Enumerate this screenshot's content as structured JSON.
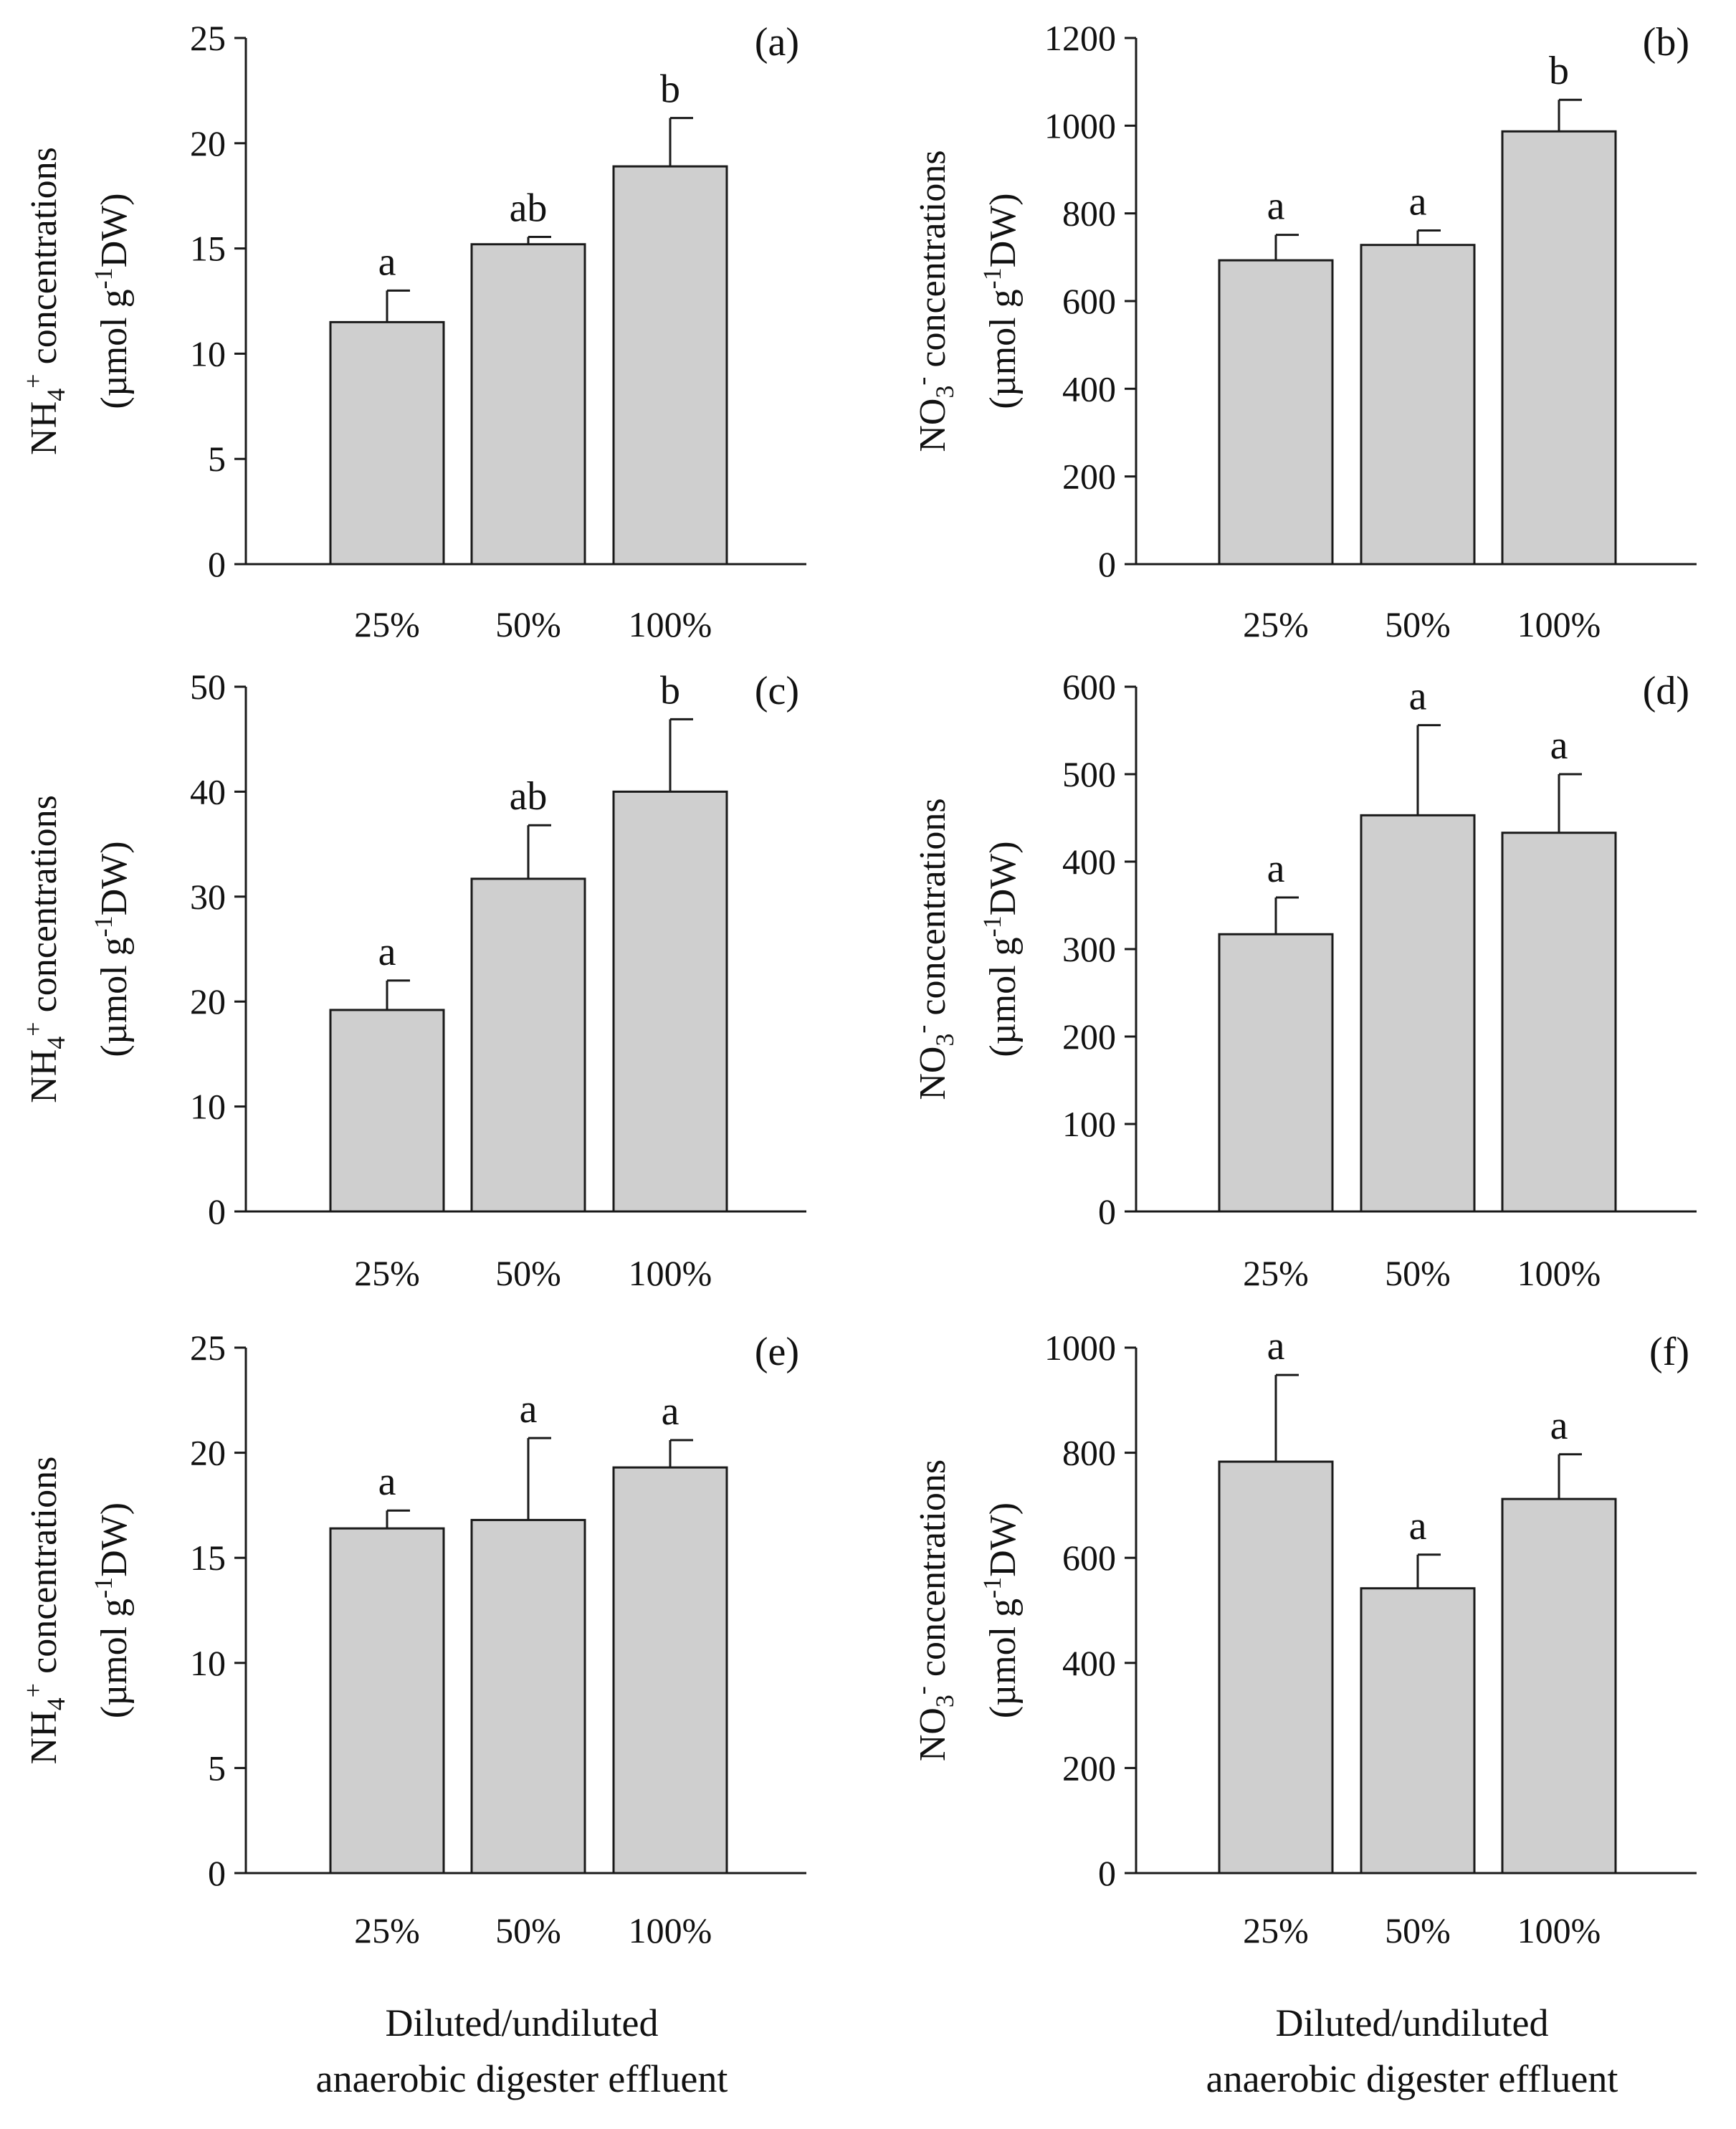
{
  "colors": {
    "bar_fill": "#cfcfcf",
    "bar_stroke": "#1a1a1a",
    "axis": "#1a1a1a"
  },
  "xlabels": {
    "left": {
      "line1": "Diluted/undiluted",
      "line2": "anaerobic digester effluent"
    },
    "right": {
      "line1": "Diluted/undiluted",
      "line2": "anaerobic digester effluent"
    }
  },
  "chart_data": [
    {
      "id": "a",
      "tag": "(a)",
      "type": "bar",
      "ylabel": {
        "ion": "NH",
        "sub": "4",
        "sup": "+",
        "rest": " concentrations",
        "unit_pre": "(µmol g",
        "unit_sup": "-1",
        "unit_post": "DW)"
      },
      "categories": [
        "25%",
        "50%",
        "100%"
      ],
      "values": [
        11.5,
        15.2,
        18.9
      ],
      "errors": [
        1.5,
        0.35,
        2.3
      ],
      "letters": [
        "a",
        "ab",
        "b"
      ],
      "ylim": [
        0,
        25
      ],
      "yticks": [
        0,
        5,
        10,
        15,
        20,
        25
      ]
    },
    {
      "id": "b",
      "tag": "(b)",
      "type": "bar",
      "ylabel": {
        "ion": "NO",
        "sub": "3",
        "sup": "-",
        "rest": " concentrations",
        "unit_pre": "(µmol g",
        "unit_sup": "-1",
        "unit_post": "DW)"
      },
      "categories": [
        "25%",
        "50%",
        "100%"
      ],
      "values": [
        693,
        728,
        987
      ],
      "errors": [
        58,
        33,
        72
      ],
      "letters": [
        "a",
        "a",
        "b"
      ],
      "ylim": [
        0,
        1200
      ],
      "yticks": [
        0,
        200,
        400,
        600,
        800,
        1000,
        1200
      ]
    },
    {
      "id": "c",
      "tag": "(c)",
      "type": "bar",
      "ylabel": {
        "ion": "NH",
        "sub": "4",
        "sup": "+",
        "rest": " concentrations",
        "unit_pre": "(µmol g",
        "unit_sup": "-1",
        "unit_post": "DW)"
      },
      "categories": [
        "25%",
        "50%",
        "100%"
      ],
      "values": [
        19.2,
        31.7,
        40.0
      ],
      "errors": [
        2.8,
        5.1,
        6.9
      ],
      "letters": [
        "a",
        "ab",
        "b"
      ],
      "ylim": [
        0,
        50
      ],
      "yticks": [
        0,
        10,
        20,
        30,
        40,
        50
      ]
    },
    {
      "id": "d",
      "tag": "(d)",
      "type": "bar",
      "ylabel": {
        "ion": "NO",
        "sub": "3",
        "sup": "-",
        "rest": " concentrations",
        "unit_pre": "(µmol g",
        "unit_sup": "-1",
        "unit_post": "DW)"
      },
      "categories": [
        "25%",
        "50%",
        "100%"
      ],
      "values": [
        317,
        453,
        433
      ],
      "errors": [
        42,
        103,
        67
      ],
      "letters": [
        "a",
        "a",
        "a"
      ],
      "ylim": [
        0,
        600
      ],
      "yticks": [
        0,
        100,
        200,
        300,
        400,
        500,
        600
      ]
    },
    {
      "id": "e",
      "tag": "(e)",
      "type": "bar",
      "ylabel": {
        "ion": "NH",
        "sub": "4",
        "sup": "+",
        "rest": " concentrations",
        "unit_pre": "(µmol g",
        "unit_sup": "-1",
        "unit_post": "DW)"
      },
      "categories": [
        "25%",
        "50%",
        "100%"
      ],
      "values": [
        16.4,
        16.8,
        19.3
      ],
      "errors": [
        0.85,
        3.9,
        1.3
      ],
      "letters": [
        "a",
        "a",
        "a"
      ],
      "ylim": [
        0,
        25
      ],
      "yticks": [
        0,
        5,
        10,
        15,
        20,
        25
      ]
    },
    {
      "id": "f",
      "tag": "(f)",
      "type": "bar",
      "ylabel": {
        "ion": "NO",
        "sub": "3",
        "sup": "-",
        "rest": " concentrations",
        "unit_pre": "(µmol g",
        "unit_sup": "-1",
        "unit_post": "DW)"
      },
      "categories": [
        "25%",
        "50%",
        "100%"
      ],
      "values": [
        783,
        542,
        712
      ],
      "errors": [
        165,
        64,
        85
      ],
      "letters": [
        "a",
        "a",
        "a"
      ],
      "ylim": [
        0,
        1000
      ],
      "yticks": [
        0,
        200,
        400,
        600,
        800,
        1000
      ]
    }
  ]
}
